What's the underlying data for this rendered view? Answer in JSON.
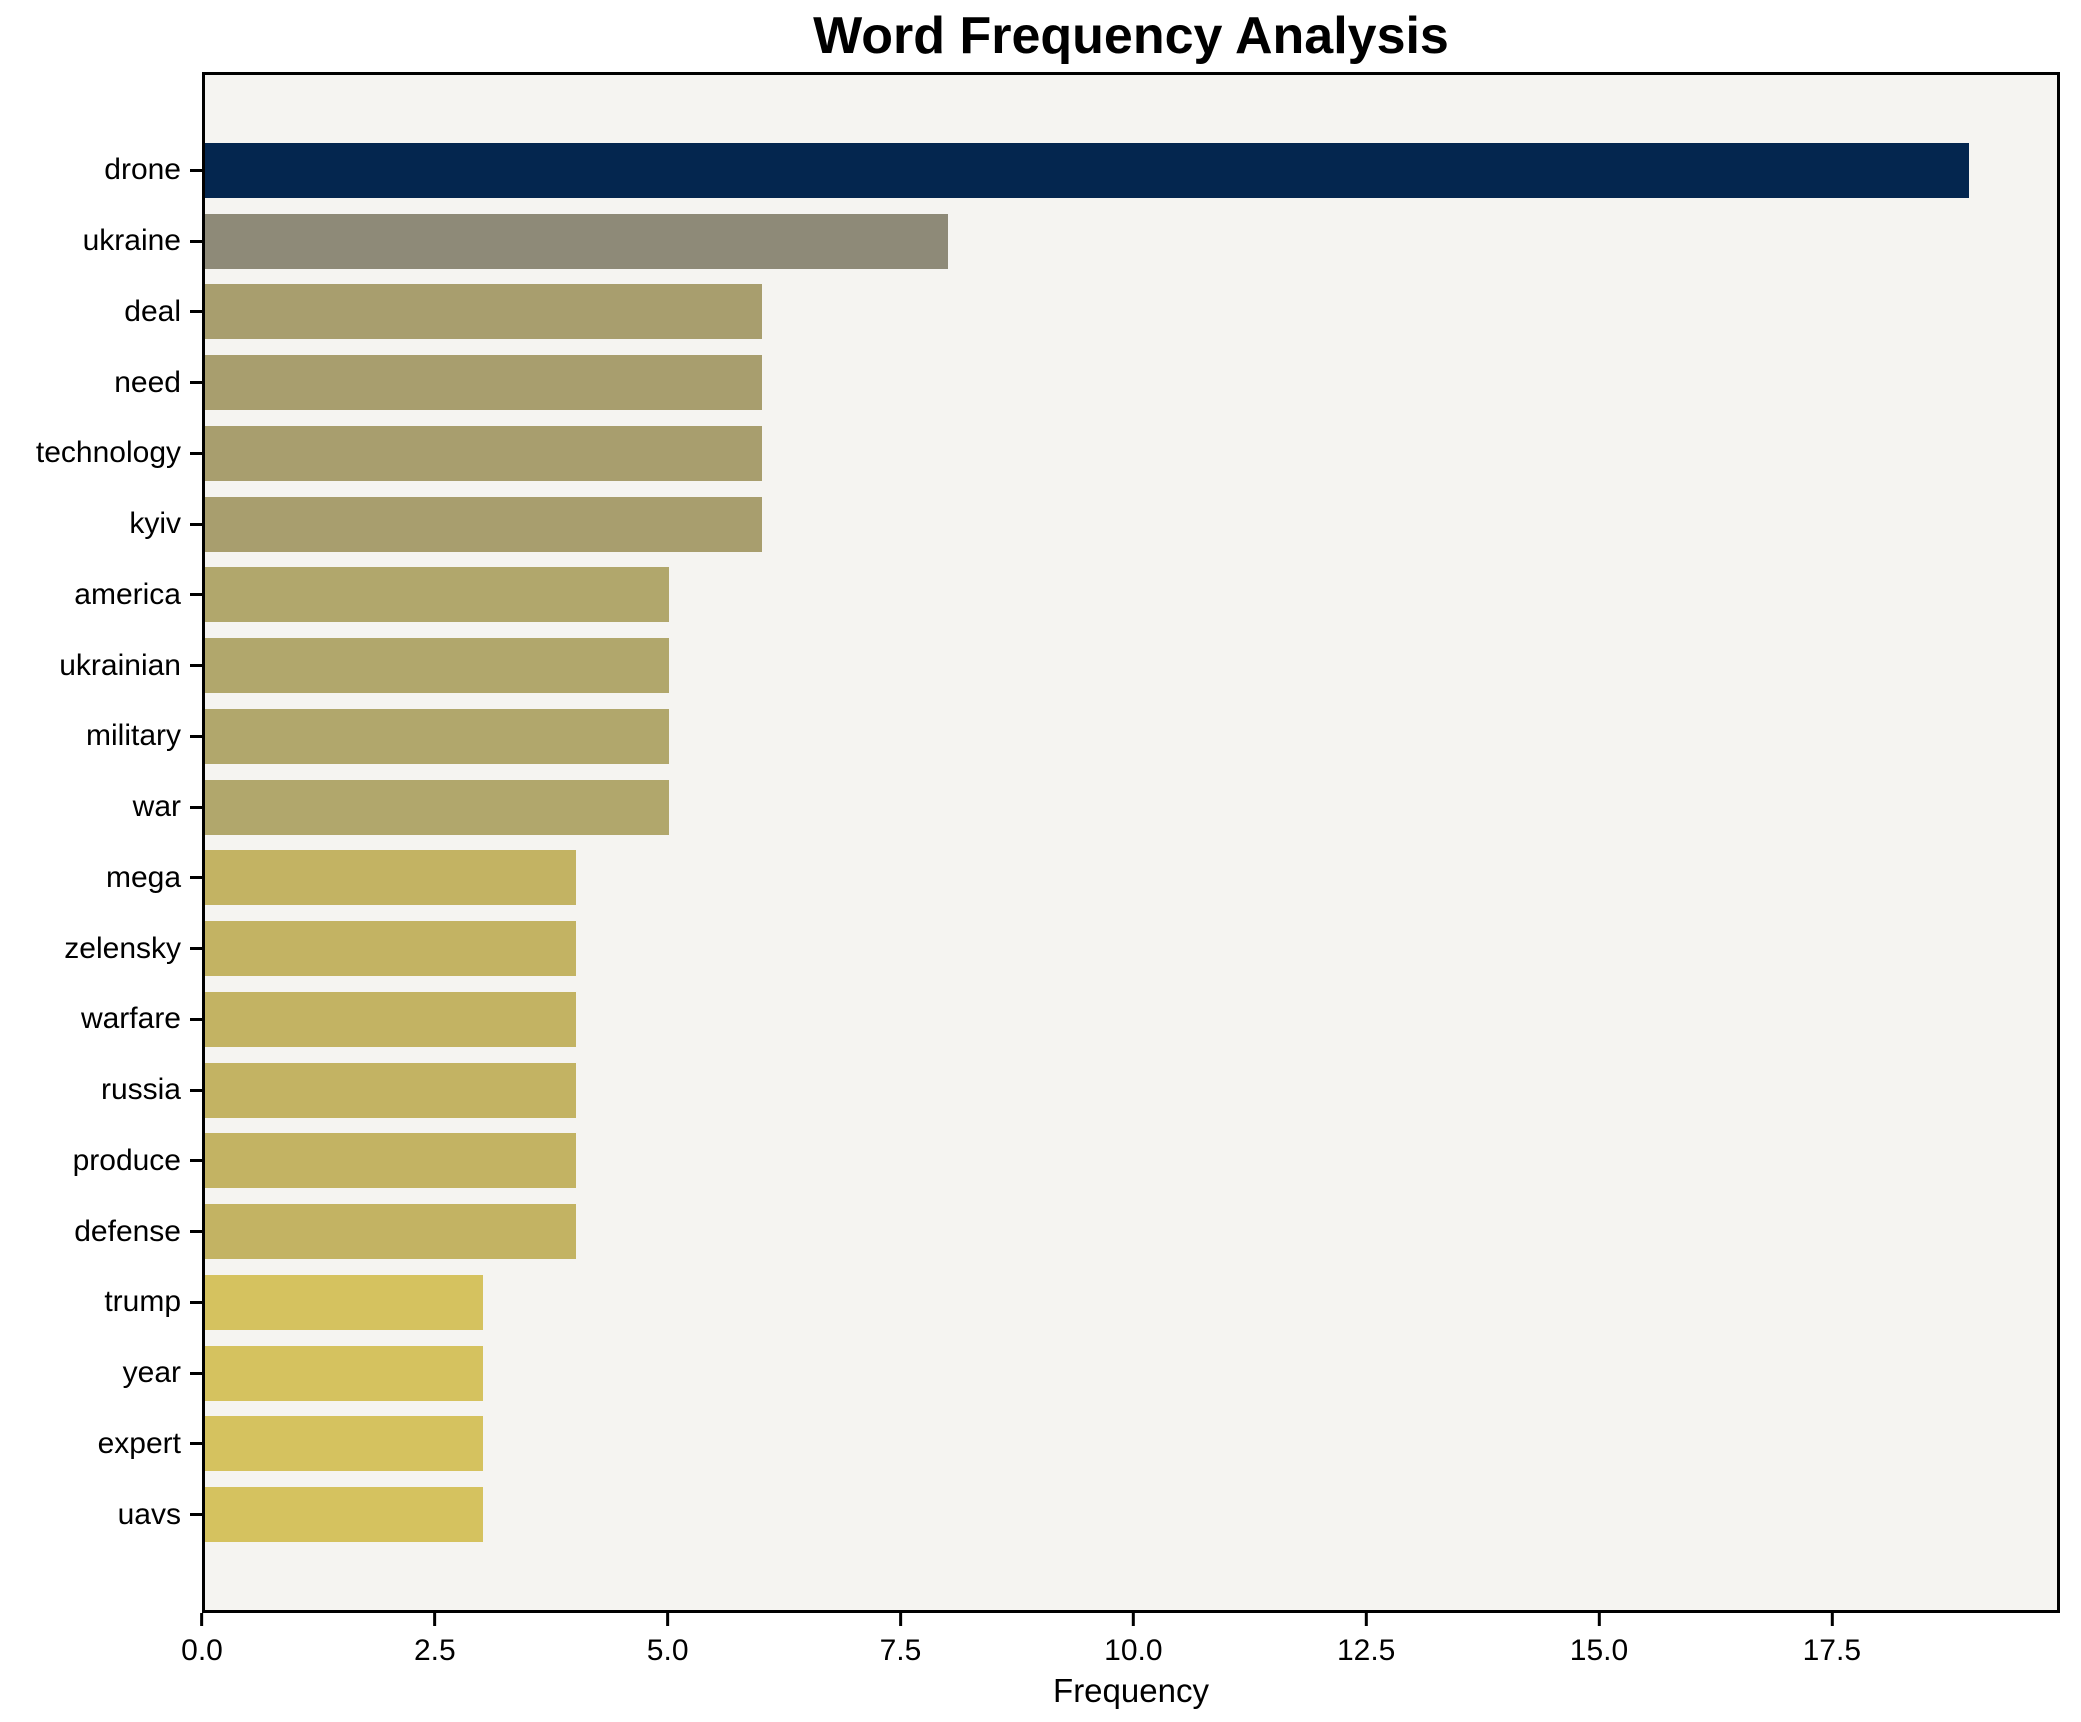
{
  "chart_data": {
    "type": "bar",
    "orientation": "horizontal",
    "title": "Word Frequency Analysis",
    "xlabel": "Frequency",
    "ylabel": "",
    "categories": [
      "drone",
      "ukraine",
      "deal",
      "need",
      "technology",
      "kyiv",
      "america",
      "ukrainian",
      "military",
      "war",
      "mega",
      "zelensky",
      "warfare",
      "russia",
      "produce",
      "defense",
      "trump",
      "year",
      "expert",
      "uavs"
    ],
    "values": [
      19,
      8,
      6,
      6,
      6,
      6,
      5,
      5,
      5,
      5,
      4,
      4,
      4,
      4,
      4,
      4,
      3,
      3,
      3,
      3
    ],
    "bar_colors": [
      "#04264F",
      "#8E8A78",
      "#A89E6E",
      "#A89E6E",
      "#A89E6E",
      "#A89E6E",
      "#B1A76C",
      "#B1A76C",
      "#B1A76C",
      "#B1A76C",
      "#C3B363",
      "#C3B363",
      "#C3B363",
      "#C3B363",
      "#C3B363",
      "#C3B363",
      "#D5C25F",
      "#D5C25F",
      "#D5C25F",
      "#D5C25F"
    ],
    "xlim": [
      0,
      19.95
    ],
    "xticks": [
      0.0,
      2.5,
      5.0,
      7.5,
      10.0,
      12.5,
      15.0,
      17.5
    ],
    "xtick_labels": [
      "0.0",
      "2.5",
      "5.0",
      "7.5",
      "10.0",
      "12.5",
      "15.0",
      "17.5"
    ],
    "grid": false,
    "legend": null,
    "plot_bg": "#f5f4f1",
    "figure_bg": "#ffffff",
    "spine_color": "#000000"
  }
}
